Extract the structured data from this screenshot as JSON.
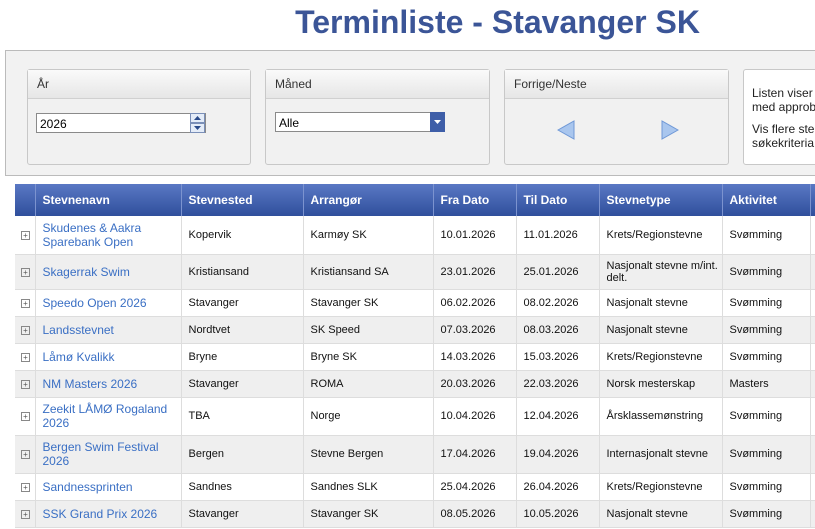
{
  "header": {
    "title": "Terminliste - Stavanger SK"
  },
  "filters": {
    "year": {
      "label": "År",
      "value": "2026"
    },
    "month": {
      "label": "Måned",
      "value": "Alle"
    },
    "nav": {
      "label": "Forrige/Neste"
    },
    "info": {
      "lines": [
        "Listen viser",
        "med approb",
        "Vis flere ste",
        "søkekriteria"
      ]
    }
  },
  "table": {
    "headers": [
      "Stevnenavn",
      "Stevnested",
      "Arrangør",
      "Fra Dato",
      "Til Dato",
      "Stevnetype",
      "Aktivitet"
    ],
    "rows": [
      [
        "Skudenes & Aakra Sparebank Open",
        "Kopervik",
        "Karmøy SK",
        "10.01.2026",
        "11.01.2026",
        "Krets/Regionstevne",
        "Svømming"
      ],
      [
        "Skagerrak Swim",
        "Kristiansand",
        "Kristiansand SA",
        "23.01.2026",
        "25.01.2026",
        "Nasjonalt stevne m/int. delt.",
        "Svømming"
      ],
      [
        "Speedo Open 2026",
        "Stavanger",
        "Stavanger SK",
        "06.02.2026",
        "08.02.2026",
        "Nasjonalt stevne",
        "Svømming"
      ],
      [
        "Landsstevnet",
        "Nordtvet",
        "SK Speed",
        "07.03.2026",
        "08.03.2026",
        "Nasjonalt stevne",
        "Svømming"
      ],
      [
        "Låmø Kvalikk",
        "Bryne",
        "Bryne SK",
        "14.03.2026",
        "15.03.2026",
        "Krets/Regionstevne",
        "Svømming"
      ],
      [
        "NM Masters 2026",
        "Stavanger",
        "ROMA",
        "20.03.2026",
        "22.03.2026",
        "Norsk mesterskap",
        "Masters"
      ],
      [
        "Zeekit LÅMØ Rogaland 2026",
        "TBA",
        "Norge",
        "10.04.2026",
        "12.04.2026",
        "Årsklassemønstring",
        "Svømming"
      ],
      [
        "Bergen Swim Festival 2026",
        "Bergen",
        "Stevne Bergen",
        "17.04.2026",
        "19.04.2026",
        "Internasjonalt stevne",
        "Svømming"
      ],
      [
        "Sandnessprinten",
        "Sandnes",
        "Sandnes SLK",
        "25.04.2026",
        "26.04.2026",
        "Krets/Regionstevne",
        "Svømming"
      ],
      [
        "SSK Grand Prix 2026",
        "Stavanger",
        "Stavanger SK",
        "08.05.2026",
        "10.05.2026",
        "Nasjonalt stevne",
        "Svømming"
      ]
    ]
  }
}
